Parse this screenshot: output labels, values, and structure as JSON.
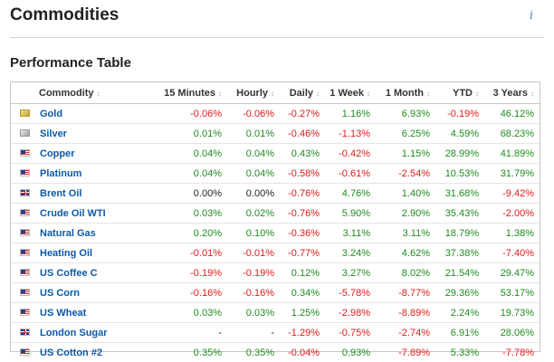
{
  "header": {
    "title": "Commodities",
    "info_icon": "info-icon"
  },
  "section": {
    "title": "Performance Table"
  },
  "colors": {
    "positive": "#1f8b1f",
    "negative": "#e11a1a",
    "link": "#0b5aa8"
  },
  "table": {
    "sort_glyph": "↕",
    "columns": [
      "Commodity",
      "15 Minutes",
      "Hourly",
      "Daily",
      "1 Week",
      "1 Month",
      "YTD",
      "3 Years"
    ],
    "rows": [
      {
        "icon": "gold-icon",
        "name": "Gold",
        "values": [
          "-0.06%",
          "-0.06%",
          "-0.27%",
          "1.16%",
          "6.93%",
          "-0.19%",
          "46.12%"
        ]
      },
      {
        "icon": "silver-icon",
        "name": "Silver",
        "values": [
          "0.01%",
          "0.01%",
          "-0.46%",
          "-1.13%",
          "6.25%",
          "4.59%",
          "68.23%"
        ]
      },
      {
        "icon": "us-flag-icon",
        "name": "Copper",
        "values": [
          "0.04%",
          "0.04%",
          "0.43%",
          "-0.42%",
          "1.15%",
          "28.99%",
          "41.89%"
        ]
      },
      {
        "icon": "us-flag-icon",
        "name": "Platinum",
        "values": [
          "0.04%",
          "0.04%",
          "-0.58%",
          "-0.61%",
          "-2.54%",
          "10.53%",
          "31.79%"
        ]
      },
      {
        "icon": "uk-flag-icon",
        "name": "Brent Oil",
        "values": [
          "0.00%",
          "0.00%",
          "-0.76%",
          "4.76%",
          "1.40%",
          "31.68%",
          "-9.42%"
        ]
      },
      {
        "icon": "us-flag-icon",
        "name": "Crude Oil WTI",
        "values": [
          "0.03%",
          "0.02%",
          "-0.76%",
          "5.90%",
          "2.90%",
          "35.43%",
          "-2.00%"
        ]
      },
      {
        "icon": "us-flag-icon",
        "name": "Natural Gas",
        "values": [
          "0.20%",
          "0.10%",
          "-0.36%",
          "3.11%",
          "3.11%",
          "18.79%",
          "1.38%"
        ]
      },
      {
        "icon": "us-flag-icon",
        "name": "Heating Oil",
        "values": [
          "-0.01%",
          "-0.01%",
          "-0.77%",
          "3.24%",
          "4.62%",
          "37.38%",
          "-7.40%"
        ]
      },
      {
        "icon": "us-flag-icon",
        "name": "US Coffee C",
        "values": [
          "-0.19%",
          "-0.19%",
          "0.12%",
          "3.27%",
          "8.02%",
          "21.54%",
          "29.47%"
        ]
      },
      {
        "icon": "us-flag-icon",
        "name": "US Corn",
        "values": [
          "-0.16%",
          "-0.16%",
          "0.34%",
          "-5.78%",
          "-8.77%",
          "29.36%",
          "53.17%"
        ]
      },
      {
        "icon": "us-flag-icon",
        "name": "US Wheat",
        "values": [
          "0.03%",
          "0.03%",
          "1.25%",
          "-2.98%",
          "-8.89%",
          "2.24%",
          "19.73%"
        ]
      },
      {
        "icon": "uk-flag-icon",
        "name": "London Sugar",
        "values": [
          "-",
          "-",
          "-1.29%",
          "-0.75%",
          "-2.74%",
          "6.91%",
          "28.06%"
        ]
      },
      {
        "icon": "us-flag-icon",
        "name": "US Cotton #2",
        "values": [
          "0.35%",
          "0.35%",
          "-0.04%",
          "0.93%",
          "-7.89%",
          "5.33%",
          "-7.78%"
        ]
      }
    ]
  }
}
